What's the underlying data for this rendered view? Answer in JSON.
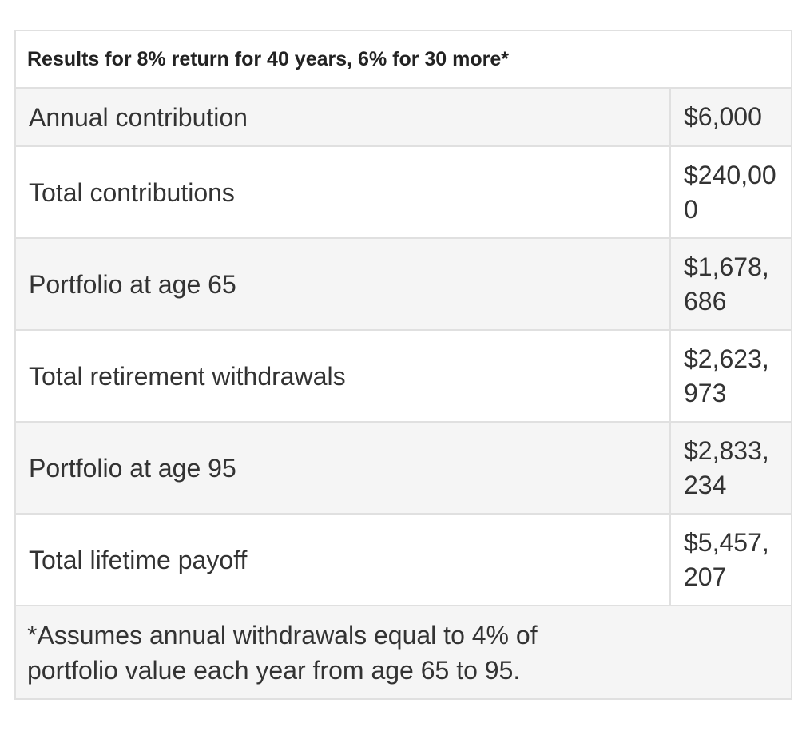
{
  "table": {
    "header": "Results for 8% return for 40 years, 6% for 30 more*",
    "rows": [
      {
        "label": "Annual contribution",
        "value": "$6,000"
      },
      {
        "label": "Total contributions",
        "value": "$240,000"
      },
      {
        "label": "Portfolio at age 65",
        "value": "$1,678,686"
      },
      {
        "label": "Total retirement withdrawals",
        "value": "$2,623,973"
      },
      {
        "label": "Portfolio at age 95",
        "value": "$2,833,234"
      },
      {
        "label": "Total lifetime payoff",
        "value": "$5,457,207"
      }
    ],
    "footnote": "*Assumes annual withdrawals equal to 4% of portfolio value each year from age 65 to 95."
  }
}
